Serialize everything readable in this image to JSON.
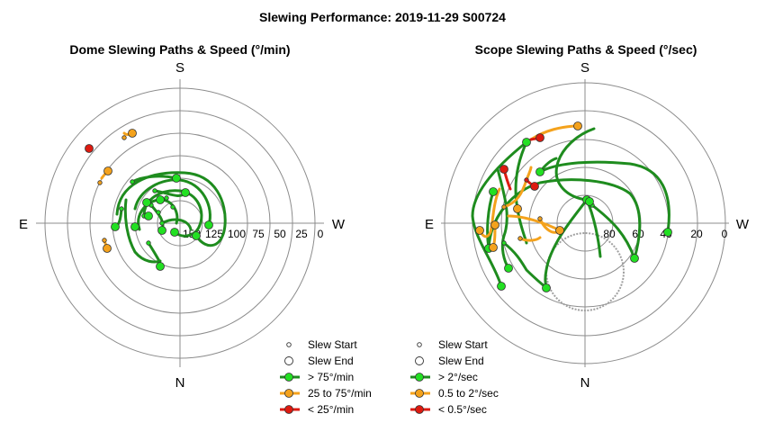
{
  "title": "Slewing Performance: 2019-11-29 S00724",
  "colors": {
    "fast": "#1e8c1e",
    "fast_fill": "#22e022",
    "medium": "#f4a21c",
    "medium_fill": "#f4a21c",
    "slow": "#dd1a10",
    "slow_fill": "#dd1a10",
    "grid": "#8c8c8c"
  },
  "chart_data": [
    {
      "type": "scatter",
      "title": "Dome Slewing Paths & Speed (°/min)",
      "directions": {
        "top": "S",
        "left": "E",
        "right": "W",
        "bottom": "N"
      },
      "radial_ticks": [
        "150",
        "125",
        "100",
        "75",
        "50",
        "25",
        "0"
      ],
      "radial_range": [
        0,
        175
      ],
      "radial_direction": "value decreases outward",
      "grid": true,
      "legend": {
        "placement": "bottom-right",
        "entries": [
          "Slew Start",
          "Slew End",
          "> 75°/min",
          "25 to 75°/min",
          "< 25°/min"
        ]
      },
      "start_points": [
        {
          "az": 100,
          "r": 135
        },
        {
          "az": 110,
          "r": 140
        },
        {
          "az": 80,
          "r": 120
        },
        {
          "az": 70,
          "r": 110
        },
        {
          "az": 95,
          "r": 150
        },
        {
          "az": 125,
          "r": 145
        },
        {
          "az": 140,
          "r": 140
        },
        {
          "az": 60,
          "r": 135
        },
        {
          "az": 45,
          "r": 85
        },
        {
          "az": 52,
          "r": 92
        },
        {
          "az": 115,
          "r": 100
        }
      ],
      "end_points": [
        {
          "az": 85,
          "r": 130,
          "speed": "fast"
        },
        {
          "az": 100,
          "r": 120,
          "speed": "fast"
        },
        {
          "az": 120,
          "r": 150,
          "speed": "fast"
        },
        {
          "az": 70,
          "r": 140,
          "speed": "fast"
        },
        {
          "az": 10,
          "r": 125,
          "speed": "fast"
        },
        {
          "az": 160,
          "r": 160,
          "speed": "fast"
        },
        {
          "az": 140,
          "r": 130,
          "speed": "fast"
        },
        {
          "az": 95,
          "r": 140,
          "speed": "fast"
        },
        {
          "az": 110,
          "r": 132,
          "speed": "fast"
        },
        {
          "az": 75,
          "r": 128,
          "speed": "fast"
        },
        {
          "az": 55,
          "r": 95,
          "speed": "medium"
        },
        {
          "az": 42,
          "r": 88,
          "speed": "medium"
        },
        {
          "az": 70,
          "r": 85,
          "speed": "medium"
        },
        {
          "az": 110,
          "r": 90,
          "speed": "medium"
        },
        {
          "az": 52,
          "r": 64,
          "speed": "slow"
        }
      ]
    },
    {
      "type": "scatter",
      "title": "Scope Slewing Paths & Speed (°/sec)",
      "directions": {
        "top": "S",
        "left": "E",
        "right": "W",
        "bottom": "N"
      },
      "radial_ticks": [
        "80",
        "60",
        "40",
        "20",
        "0"
      ],
      "radial_range": [
        0,
        100
      ],
      "radial_direction": "value decreases outward",
      "grid": true,
      "legend": {
        "placement": "bottom-left",
        "entries": [
          "Slew Start",
          "Slew End",
          "> 2°/sec",
          "0.5 to 2°/sec",
          "< 0.5°/sec"
        ]
      },
      "start_points": [
        {
          "az": 65,
          "r": 45
        },
        {
          "az": 40,
          "r": 35
        },
        {
          "az": 75,
          "r": 55
        },
        {
          "az": 100,
          "r": 30
        },
        {
          "az": 130,
          "r": 20
        },
        {
          "az": 115,
          "r": 30
        },
        {
          "az": 25,
          "r": 30
        },
        {
          "az": 55,
          "r": 55
        }
      ],
      "end_points": [
        {
          "az": 58,
          "r": 38,
          "speed": "fast"
        },
        {
          "az": 95,
          "r": 30,
          "speed": "fast"
        },
        {
          "az": 118,
          "r": 35,
          "speed": "fast"
        },
        {
          "az": 75,
          "r": 62,
          "speed": "fast"
        },
        {
          "az": 5,
          "r": 82,
          "speed": "fast"
        },
        {
          "az": 250,
          "r": 40,
          "speed": "fast"
        },
        {
          "az": 150,
          "r": 45,
          "speed": "fast"
        },
        {
          "az": 190,
          "r": 48,
          "speed": "fast"
        },
        {
          "az": 110,
          "r": 50,
          "speed": "fast"
        },
        {
          "az": 40,
          "r": 70,
          "speed": "medium"
        },
        {
          "az": 90,
          "r": 60,
          "speed": "medium"
        },
        {
          "az": 100,
          "r": 45,
          "speed": "medium"
        },
        {
          "az": 60,
          "r": 45,
          "speed": "slow"
        },
        {
          "az": 35,
          "r": 65,
          "speed": "slow"
        }
      ]
    }
  ]
}
